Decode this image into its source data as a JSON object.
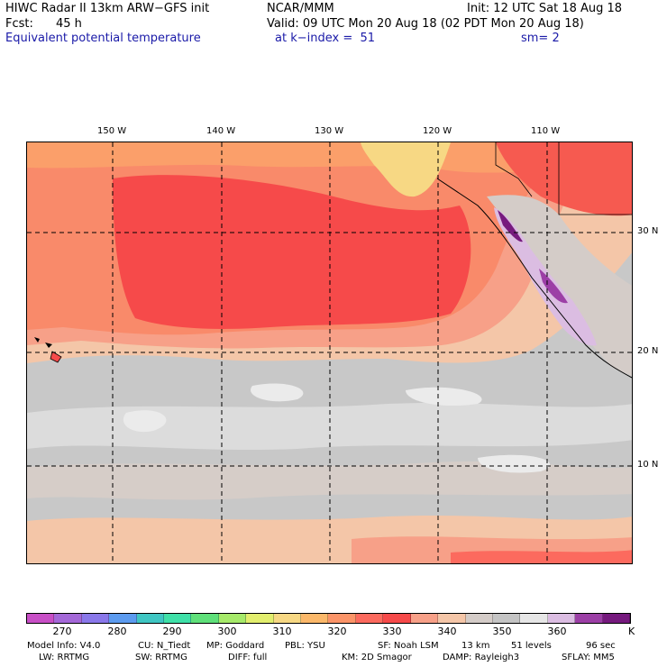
{
  "header": {
    "title_line": "HIWC Radar II 13km ARW−GFS init",
    "org": "NCAR/MMM",
    "init": "Init: 12 UTC Sat 18 Aug 18",
    "fcst_label": "Fcst:",
    "fcst_value": "45 h",
    "valid": "Valid: 09 UTC Mon 20 Aug 18 (02 PDT Mon 20 Aug 18)",
    "field": "Equivalent potential temperature",
    "level": "at k−index =  51",
    "smooth": "sm= 2"
  },
  "map": {
    "lon_labels": [
      "150 W",
      "140 W",
      "130 W",
      "120 W",
      "110 W"
    ],
    "lat_labels": [
      "30 N",
      "20 N",
      "10 N"
    ]
  },
  "colorbar": {
    "colors": [
      "#c84fc6",
      "#a468d8",
      "#8a78ea",
      "#5c9bef",
      "#3fc6c3",
      "#3fe0a8",
      "#5fe07a",
      "#a6ea6a",
      "#e2ee6e",
      "#f7d884",
      "#fbb86a",
      "#fb9468",
      "#fc6a5e",
      "#f64a4a",
      "#f7a088",
      "#f4c6a8",
      "#d4ccc8",
      "#c4c4c4",
      "#e6e6e6",
      "#dbbde2",
      "#9c3fa6",
      "#761a7e"
    ],
    "labels": [
      "270",
      "280",
      "290",
      "300",
      "310",
      "320",
      "330",
      "340",
      "350",
      "360"
    ],
    "unit": "K"
  },
  "footer": {
    "line1": [
      "Model Info: V4.0",
      "CU: N_Tiedt",
      "MP: Goddard",
      "PBL: YSU",
      "SF: Noah LSM",
      "13 km",
      "51 levels",
      "96 sec"
    ],
    "line2": [
      "LW: RRTMG",
      "SW: RRTMG",
      "DIFF: full",
      "KM: 2D Smagor",
      "DAMP: Rayleigh3",
      "SFLAY: MM5"
    ]
  }
}
